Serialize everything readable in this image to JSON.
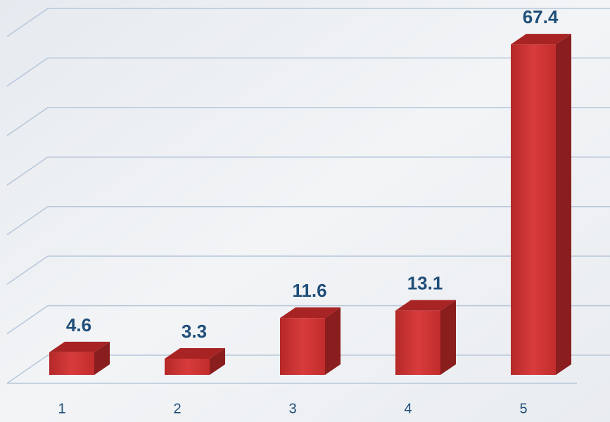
{
  "chart_data": {
    "type": "bar3d",
    "categories": [
      "1",
      "2",
      "3",
      "4",
      "5"
    ],
    "values": [
      4.6,
      3.3,
      11.6,
      13.1,
      67.4
    ],
    "color": "#c83232",
    "ylim": [
      0,
      70
    ],
    "yticks": [
      0,
      10,
      20,
      30,
      40,
      50,
      60,
      70
    ],
    "grid": true
  }
}
